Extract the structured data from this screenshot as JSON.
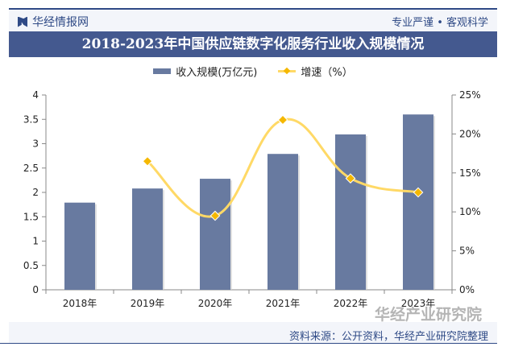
{
  "header": {
    "brand": "华经情报网",
    "slogan": "专业严谨 • 客观科学"
  },
  "footer": {
    "source": "资料来源：公开资料，华经产业研究院整理",
    "watermark": "华经产业研究院"
  },
  "chart_data": {
    "type": "bar+line",
    "title": "2018-2023年中国供应链数字化服务行业收入规模情况",
    "categories": [
      "2018年",
      "2019年",
      "2020年",
      "2021年",
      "2022年",
      "2023年"
    ],
    "series": [
      {
        "name": "收入规模(万亿元)",
        "type": "bar",
        "axis": "left",
        "color": "#687aa0",
        "values": [
          1.79,
          2.08,
          2.28,
          2.79,
          3.19,
          3.6
        ]
      },
      {
        "name": "增速（%）",
        "type": "line",
        "axis": "right",
        "color": "#ffd966",
        "marker_color": "#f5b800",
        "values": [
          null,
          16.5,
          9.5,
          21.8,
          14.3,
          12.5
        ]
      }
    ],
    "left_axis": {
      "ylim": [
        0,
        4
      ],
      "ticks": [
        "0",
        "0.5",
        "1",
        "1.5",
        "2",
        "2.5",
        "3",
        "3.5",
        "4"
      ]
    },
    "right_axis": {
      "ylim": [
        0,
        25
      ],
      "ticks": [
        "0%",
        "5%",
        "10%",
        "15%",
        "20%",
        "25%"
      ]
    },
    "legend": "top",
    "grid": false
  }
}
